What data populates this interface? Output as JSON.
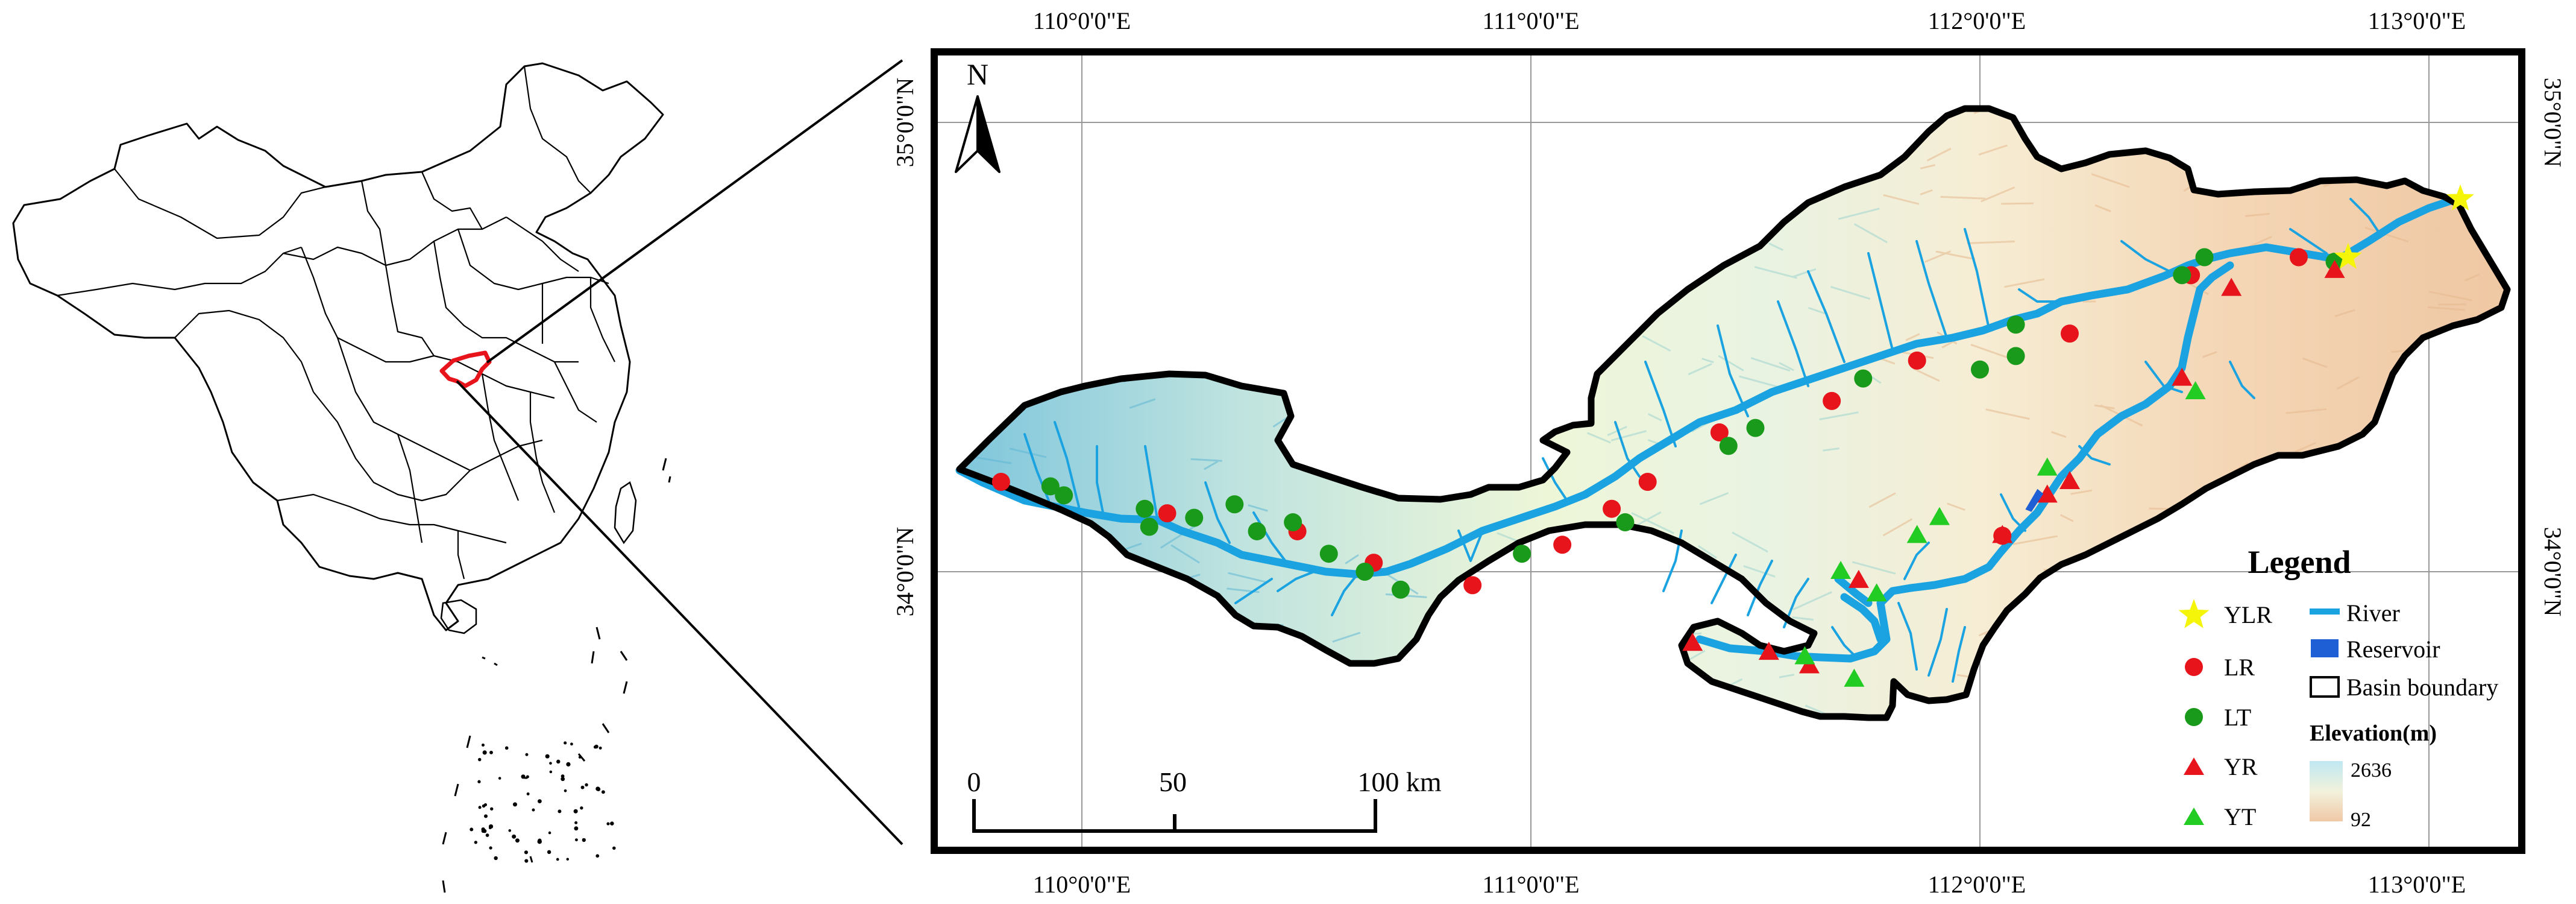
{
  "map": {
    "north_label": "N",
    "top_lon_labels": [
      "110°0'0\"E",
      "111°0'0\"E",
      "112°0'0\"E",
      "113°0'0\"E"
    ],
    "bottom_lon_labels": [
      "110°0'0\"E",
      "111°0'0\"E",
      "112°0'0\"E",
      "113°0'0\"E"
    ],
    "left_lat_labels": [
      "35°0'0\"N",
      "34°0'0\"N"
    ],
    "right_lat_labels": [
      "35°0'0\"N",
      "34°0'0\"N"
    ],
    "scale_labels": [
      "0",
      "50",
      "100 km"
    ]
  },
  "legend": {
    "title": "Legend",
    "ylr": "YLR",
    "lr": "LR",
    "lt": "LT",
    "yr": "YR",
    "yt": "YT",
    "river": "River",
    "reservoir": "Reservoir",
    "basin": "Basin boundary",
    "elevation_title": "Elevation(m)",
    "elev_high": "2636",
    "elev_low": "92"
  },
  "colors": {
    "river": "#1aa3e0",
    "reservoir": "#1f5fd6",
    "lr": "#e8141b",
    "lt": "#1a9a1a",
    "yr": "#e8141b",
    "yt": "#22cc22",
    "ylr": "#f5f50a",
    "highlight": "#e8141b"
  },
  "stations": {
    "ylr": [
      [
        113.07,
        34.83
      ],
      [
        112.82,
        34.7
      ]
    ],
    "lr": [
      [
        109.82,
        34.2
      ],
      [
        110.19,
        34.13
      ],
      [
        110.48,
        34.09
      ],
      [
        110.65,
        34.02
      ],
      [
        110.87,
        33.97
      ],
      [
        111.07,
        34.06
      ],
      [
        111.18,
        34.14
      ],
      [
        111.26,
        34.2
      ],
      [
        111.42,
        34.31
      ],
      [
        111.67,
        34.38
      ],
      [
        111.86,
        34.47
      ],
      [
        112.2,
        34.53
      ],
      [
        112.47,
        34.66
      ],
      [
        112.71,
        34.7
      ],
      [
        112.05,
        34.08
      ]
    ],
    "lt": [
      [
        109.93,
        34.19
      ],
      [
        109.96,
        34.17
      ],
      [
        110.14,
        34.14
      ],
      [
        110.15,
        34.1
      ],
      [
        110.25,
        34.12
      ],
      [
        110.34,
        34.15
      ],
      [
        110.39,
        34.09
      ],
      [
        110.47,
        34.11
      ],
      [
        110.55,
        34.04
      ],
      [
        110.63,
        34.0
      ],
      [
        110.71,
        33.96
      ],
      [
        110.98,
        34.04
      ],
      [
        111.21,
        34.11
      ],
      [
        111.44,
        34.28
      ],
      [
        111.5,
        34.32
      ],
      [
        111.74,
        34.43
      ],
      [
        112.0,
        34.45
      ],
      [
        112.08,
        34.48
      ],
      [
        112.08,
        34.55
      ],
      [
        112.45,
        34.66
      ],
      [
        112.5,
        34.7
      ],
      [
        112.79,
        34.69
      ]
    ],
    "yr": [
      [
        111.36,
        33.84
      ],
      [
        111.53,
        33.82
      ],
      [
        111.62,
        33.79
      ],
      [
        111.73,
        33.98
      ],
      [
        112.05,
        34.08
      ],
      [
        112.15,
        34.17
      ],
      [
        112.2,
        34.2
      ],
      [
        112.45,
        34.43
      ],
      [
        112.56,
        34.63
      ],
      [
        112.79,
        34.67
      ]
    ],
    "yt": [
      [
        111.61,
        33.81
      ],
      [
        111.72,
        33.76
      ],
      [
        111.69,
        34.0
      ],
      [
        111.77,
        33.95
      ],
      [
        111.86,
        34.08
      ],
      [
        111.91,
        34.12
      ],
      [
        112.15,
        34.23
      ],
      [
        112.48,
        34.4
      ]
    ],
    "reservoir": [
      [
        112.12,
        34.16
      ]
    ]
  }
}
